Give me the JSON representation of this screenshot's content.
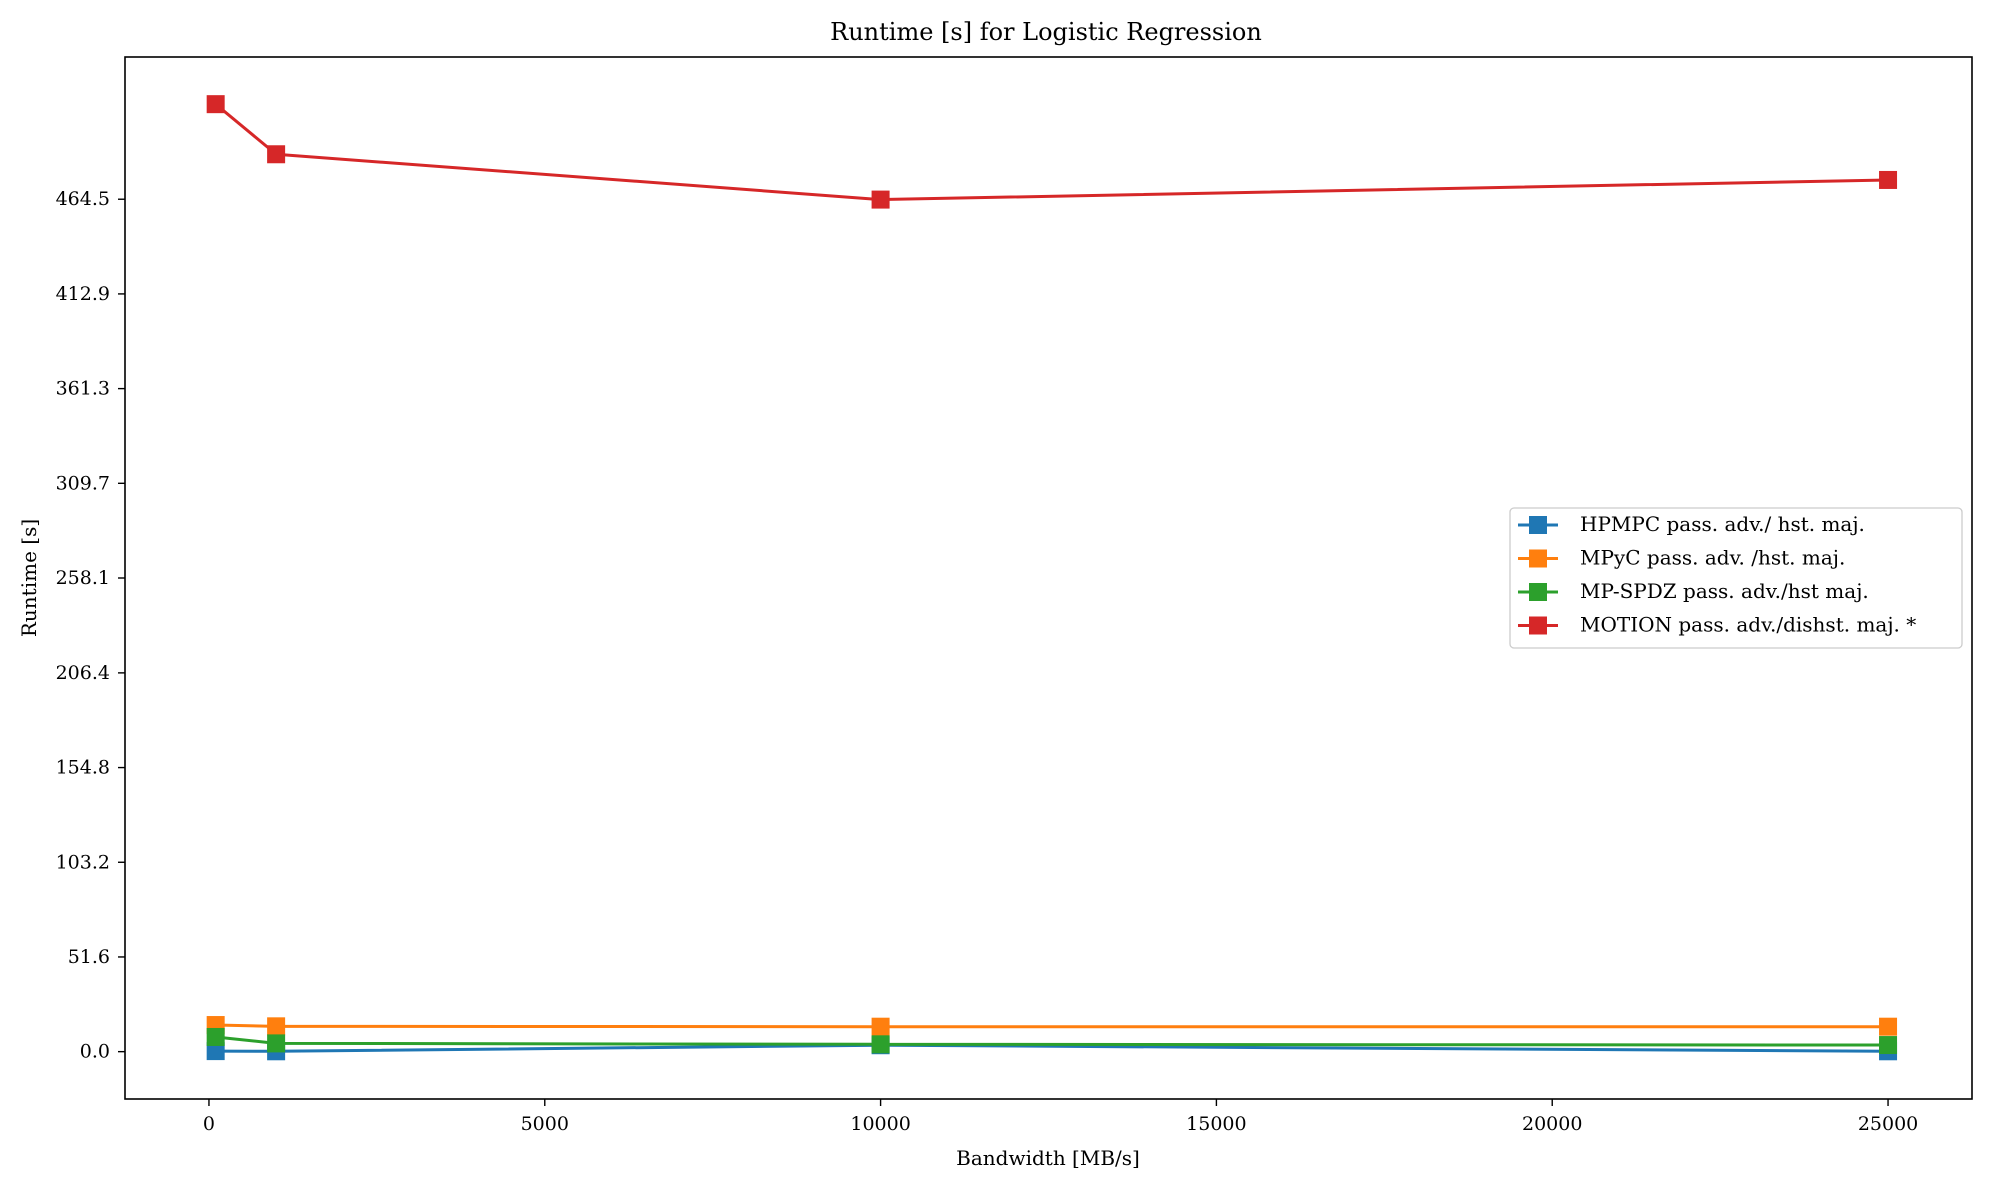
{
  "chart_data": {
    "type": "line",
    "title": "Runtime [s] for Logistic Regression",
    "xlabel": "Bandwidth [MB/s]",
    "ylabel": "Runtime [s]",
    "xlim": [
      -1250,
      26250
    ],
    "ylim": [
      -25.8,
      542
    ],
    "xticks": [
      0,
      5000,
      10000,
      15000,
      20000,
      25000
    ],
    "xtick_labels": [
      "0",
      "5000",
      "10000",
      "15000",
      "20000",
      "25000"
    ],
    "yticks": [
      0.0,
      51.6,
      103.2,
      154.8,
      206.4,
      258.1,
      309.7,
      361.3,
      412.9,
      464.5
    ],
    "ytick_labels": [
      "0.0",
      "51.6",
      "103.2",
      "154.8",
      "206.4",
      "258.1",
      "309.7",
      "361.3",
      "412.9",
      "464.5"
    ],
    "grid": false,
    "legend_position": "center-right",
    "x": [
      100,
      1000,
      10000,
      25000
    ],
    "series": [
      {
        "name": "HPMPC pass. adv./ hst. maj.",
        "color": "#1f77b4",
        "marker": "square",
        "values": [
          0.3,
          0.2,
          3.5,
          0.2
        ]
      },
      {
        "name": "MPyC pass. adv. /hst. maj.",
        "color": "#ff7f0e",
        "marker": "square",
        "values": [
          14.5,
          13.8,
          13.6,
          13.6
        ]
      },
      {
        "name": "MP-SPDZ pass. adv./hst maj.",
        "color": "#2ca02c",
        "marker": "square",
        "values": [
          8.0,
          4.5,
          4.0,
          3.6
        ]
      },
      {
        "name": "MOTION pass. adv./dishst. maj. *",
        "color": "#d62728",
        "marker": "square",
        "values": [
          516.3,
          489.0,
          464.3,
          475.0
        ]
      }
    ]
  }
}
